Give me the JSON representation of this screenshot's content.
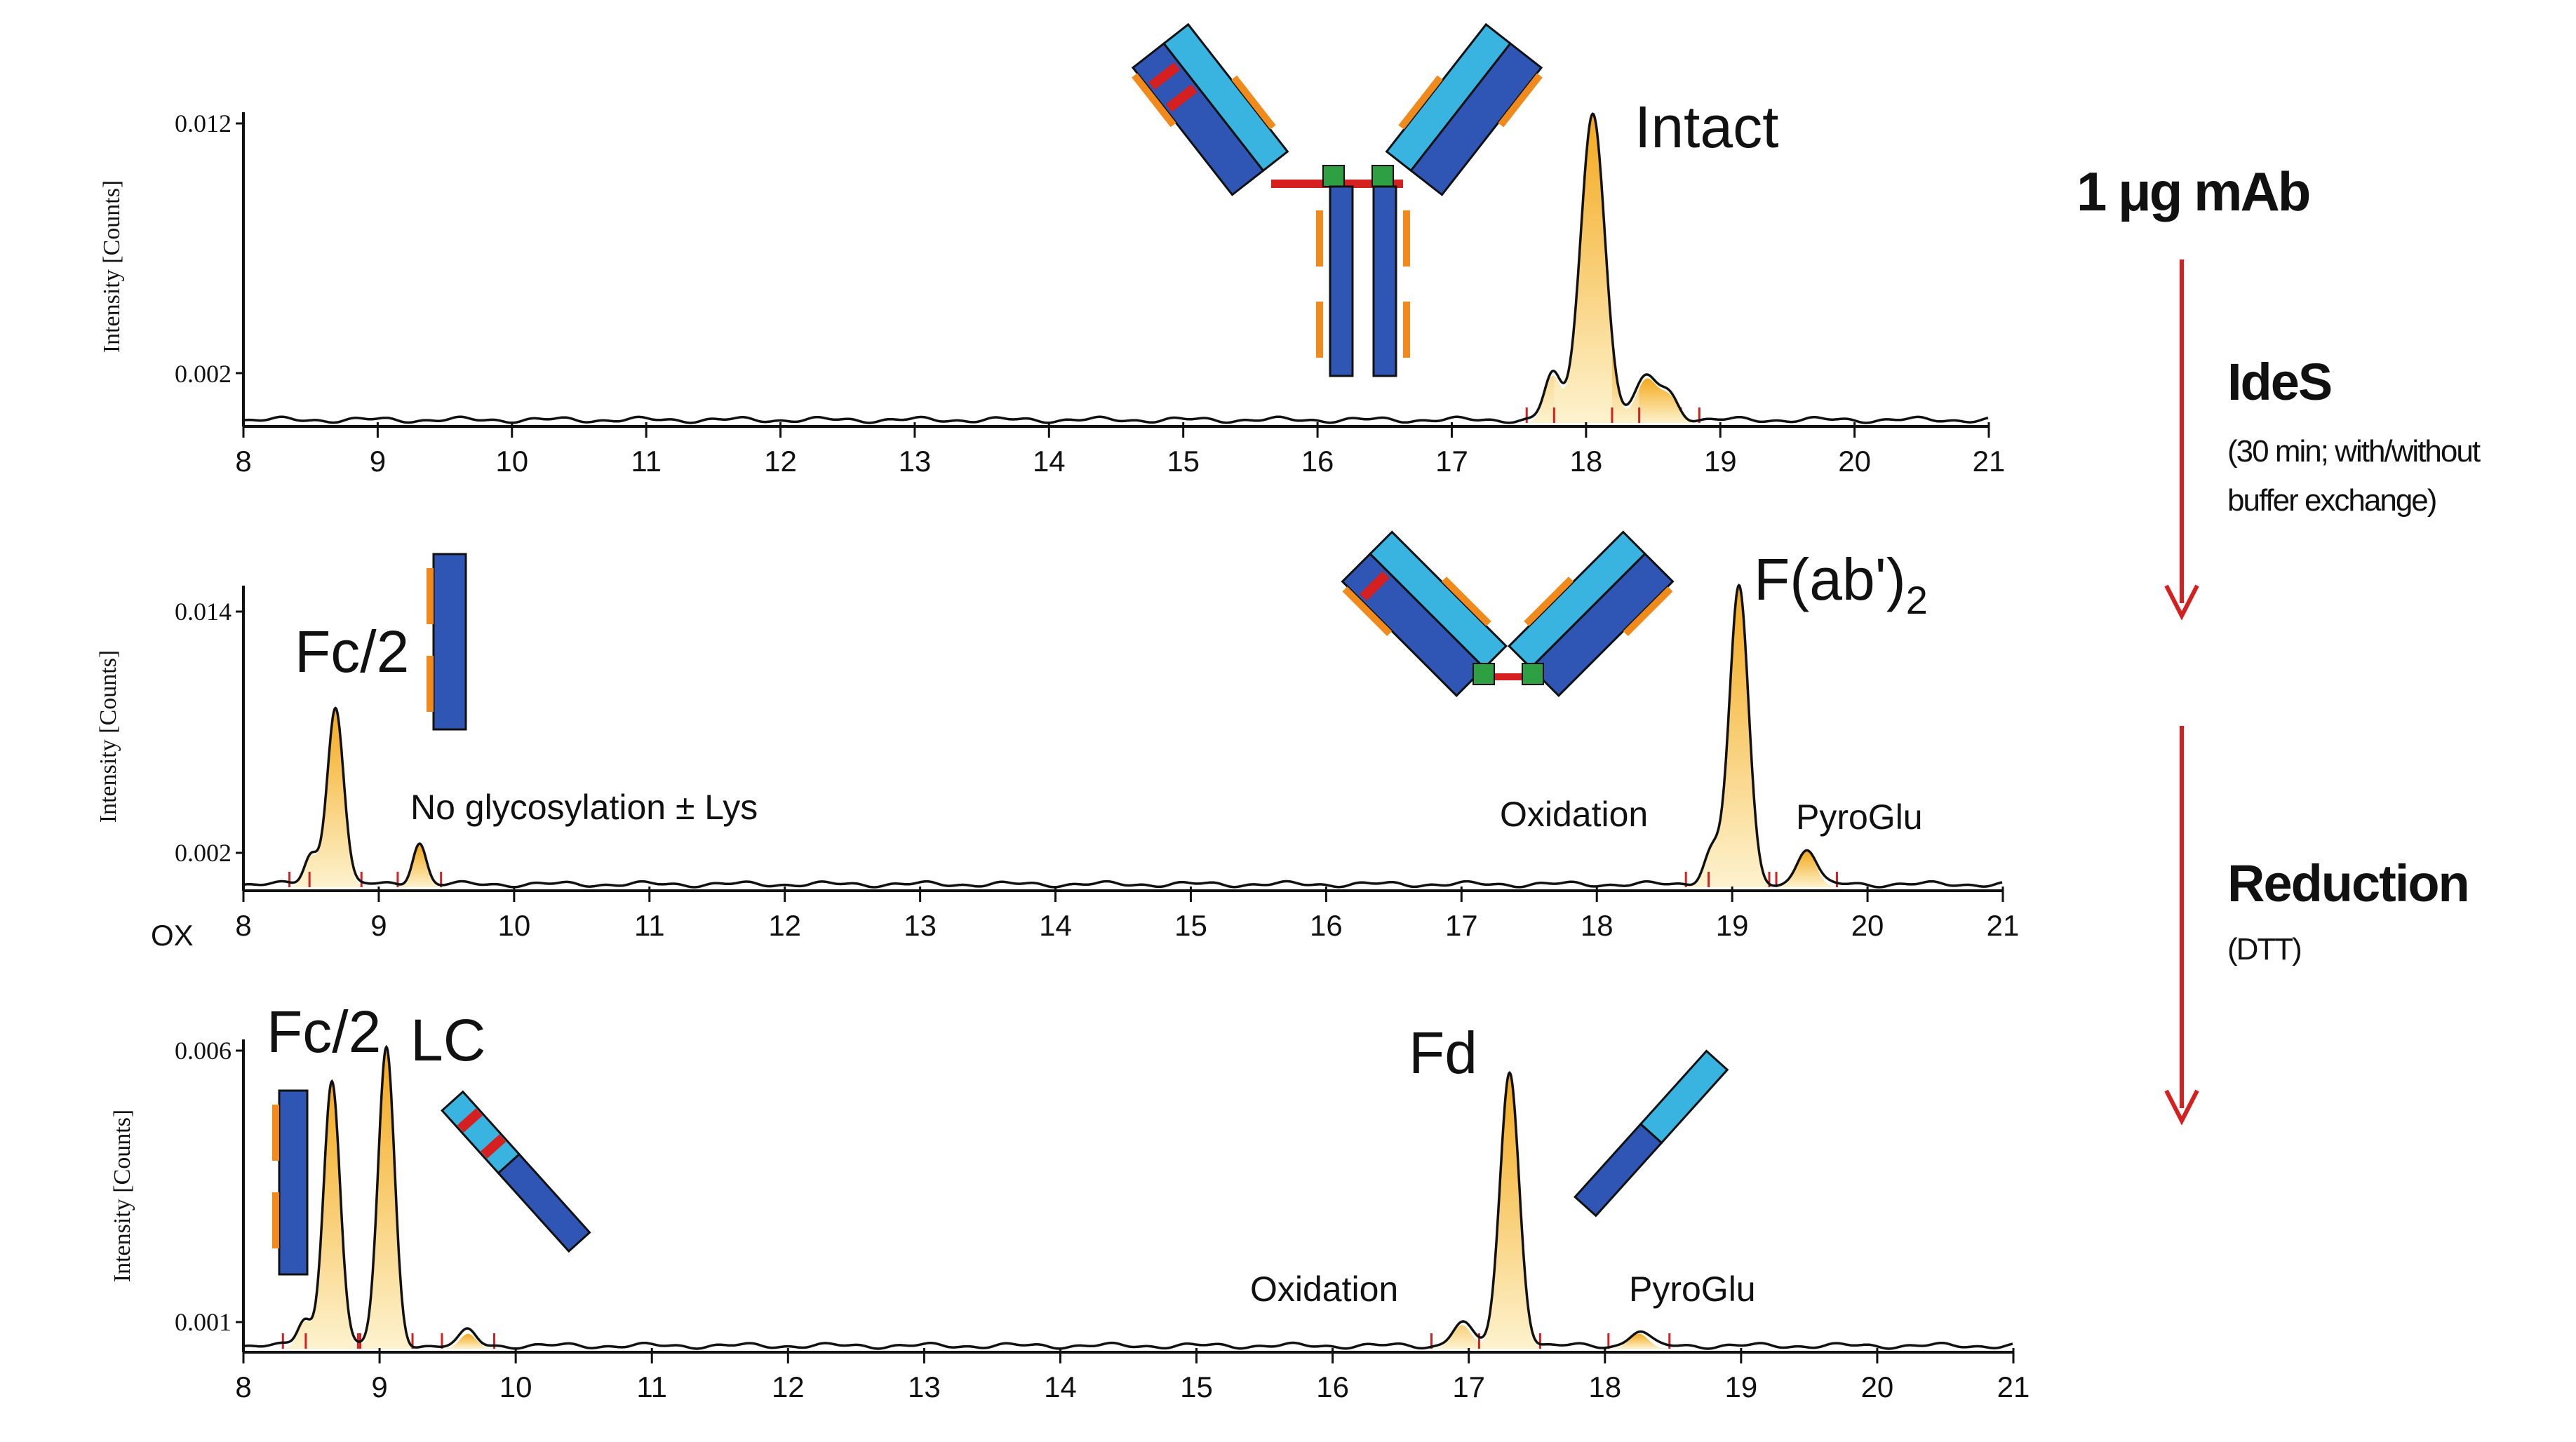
{
  "chart_data": [
    {
      "type": "line",
      "panel": "intact",
      "ylabel": "Intensity [Counts]",
      "xlim": [
        8,
        21
      ],
      "x_ticks": [
        8,
        9,
        10,
        11,
        12,
        13,
        14,
        15,
        16,
        17,
        18,
        19,
        20,
        21
      ],
      "y_ticks": [
        0.002,
        0.012
      ],
      "series": [
        {
          "peaks": [
            {
              "x": 17.75,
              "height": 0.15,
              "width": 0.06
            },
            {
              "x": 18.05,
              "height": 1.0,
              "width": 0.09
            },
            {
              "x": 18.45,
              "height": 0.14,
              "width": 0.08
            },
            {
              "x": 18.62,
              "height": 0.08,
              "width": 0.07
            }
          ]
        }
      ],
      "annotations": [
        {
          "text": "Intact",
          "x": 18.4
        }
      ]
    },
    {
      "type": "line",
      "panel": "ides",
      "ylabel": "Intensity [Counts]",
      "xlim": [
        8,
        21
      ],
      "x_ticks": [
        8,
        9,
        10,
        11,
        12,
        13,
        14,
        15,
        16,
        17,
        18,
        19,
        20,
        21
      ],
      "y_ticks": [
        0.002,
        0.014
      ],
      "series": [
        {
          "peaks": [
            {
              "x": 8.5,
              "height": 0.1,
              "width": 0.05
            },
            {
              "x": 8.68,
              "height": 0.6,
              "width": 0.06
            },
            {
              "x": 9.3,
              "height": 0.14,
              "width": 0.05
            },
            {
              "x": 18.85,
              "height": 0.12,
              "width": 0.06
            },
            {
              "x": 19.05,
              "height": 1.0,
              "width": 0.07
            },
            {
              "x": 19.55,
              "height": 0.12,
              "width": 0.07
            }
          ]
        }
      ],
      "annotations": [
        {
          "text": "Fc/2",
          "x": 8.8
        },
        {
          "text": "No glycosylation ± Lys",
          "x": 10.6
        },
        {
          "text": "Oxidation",
          "x": 18.0
        },
        {
          "text": "PyroGlu",
          "x": 20.0
        }
      ],
      "extra_label": "OX"
    },
    {
      "type": "line",
      "panel": "reduced",
      "ylabel": "Intensity [Counts]",
      "xlim": [
        8,
        21
      ],
      "x_ticks": [
        8,
        9,
        10,
        11,
        12,
        13,
        14,
        15,
        16,
        17,
        18,
        19,
        20,
        21
      ],
      "y_ticks": [
        0.001,
        0.006
      ],
      "series": [
        {
          "peaks": [
            {
              "x": 8.45,
              "height": 0.09,
              "width": 0.05
            },
            {
              "x": 8.65,
              "height": 0.9,
              "width": 0.06
            },
            {
              "x": 9.05,
              "height": 1.0,
              "width": 0.06
            },
            {
              "x": 9.65,
              "height": 0.05,
              "width": 0.06
            },
            {
              "x": 16.95,
              "height": 0.08,
              "width": 0.07
            },
            {
              "x": 17.3,
              "height": 0.92,
              "width": 0.07
            },
            {
              "x": 18.25,
              "height": 0.05,
              "width": 0.07
            }
          ]
        }
      ],
      "annotations": [
        {
          "text": "Fc/2",
          "x": 8.5
        },
        {
          "text": "LC",
          "x": 9.4
        },
        {
          "text": "Fd",
          "x": 16.75
        },
        {
          "text": "Oxidation",
          "x": 16.0
        },
        {
          "text": "PyroGlu",
          "x": 18.7
        }
      ]
    }
  ],
  "sidebar": {
    "amount": "1 μg mAb",
    "step1_title": "IdeS",
    "step1_line1": "(30 min; with/without",
    "step1_line2": "buffer exchange)",
    "step2_title": "Reduction",
    "step2_line1": "(DTT)"
  },
  "colors": {
    "peak_fill": "#f6c04a",
    "peak_fill_light": "#fdf1c9",
    "axis": "#111111",
    "arrow": "#d61f1f",
    "ab_dark": "#2f55b5",
    "ab_light": "#39b3df",
    "ab_green": "#2ea043",
    "ab_orange": "#f08a1c"
  }
}
